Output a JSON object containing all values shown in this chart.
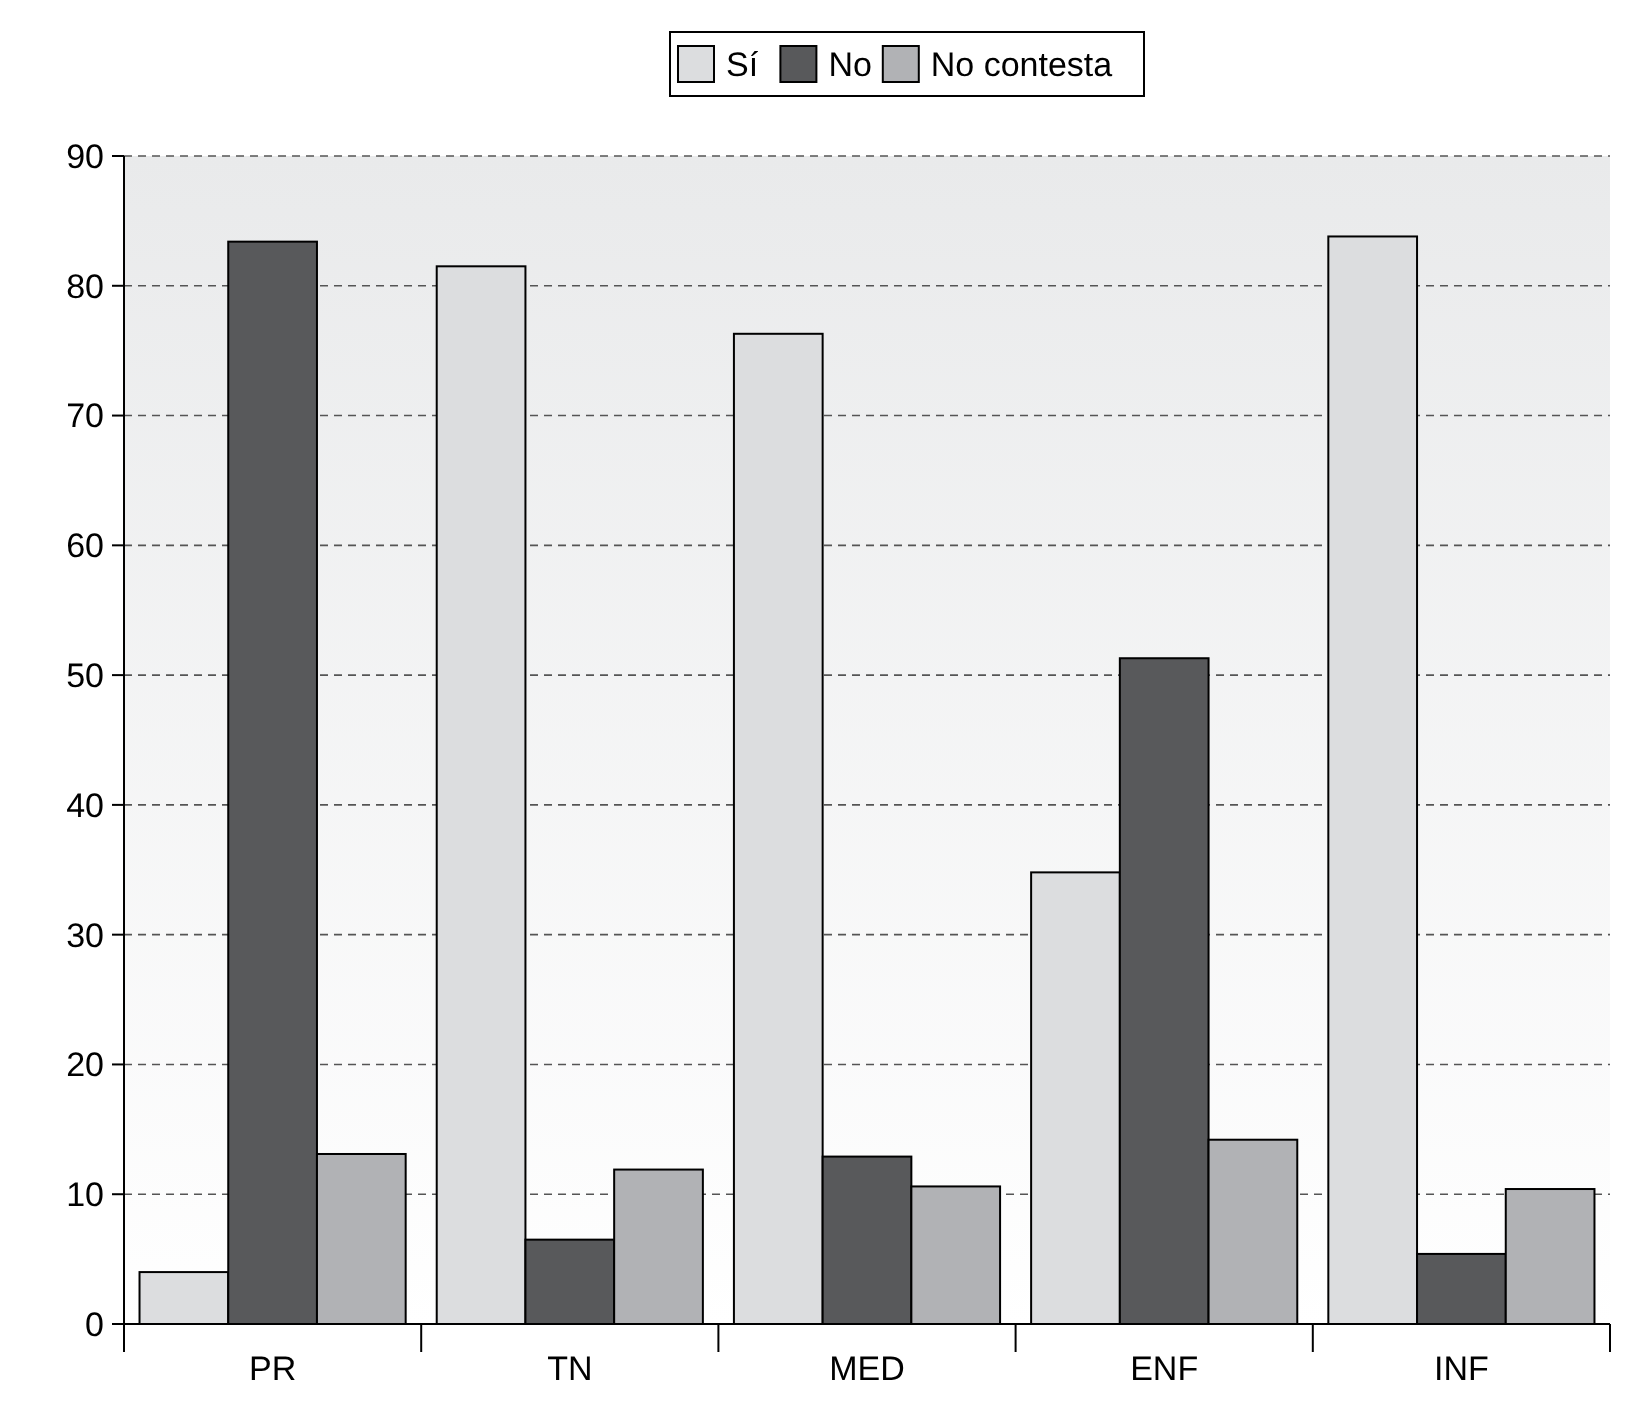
{
  "chart_data": {
    "type": "bar",
    "categories": [
      "PR",
      "TN",
      "MED",
      "ENF",
      "INF"
    ],
    "series": [
      {
        "name": "Sí",
        "color": "#dcdddf",
        "values": [
          4,
          81.5,
          76.3,
          34.8,
          83.8
        ]
      },
      {
        "name": "No",
        "color": "#58595b",
        "values": [
          83.4,
          6.5,
          12.9,
          51.3,
          5.4
        ]
      },
      {
        "name": "No contesta",
        "color": "#b1b2b5",
        "values": [
          13.1,
          11.9,
          10.6,
          14.2,
          10.4
        ]
      }
    ],
    "ylim": [
      0,
      90
    ],
    "yticks": [
      0,
      10,
      20,
      30,
      40,
      50,
      60,
      70,
      80,
      90
    ],
    "grid": "y",
    "legend": "top"
  }
}
